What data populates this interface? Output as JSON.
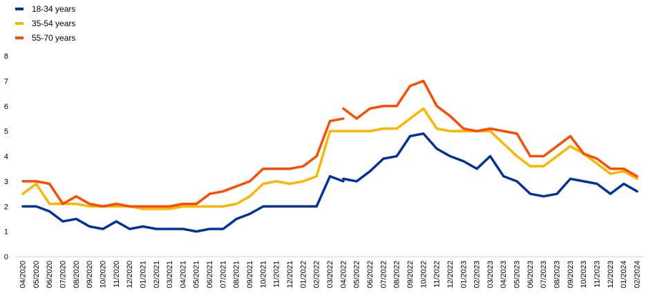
{
  "chart_data": {
    "type": "line",
    "title": "",
    "xlabel": "",
    "ylabel": "",
    "ylim": [
      0,
      8
    ],
    "yticks": [
      0,
      1,
      2,
      3,
      4,
      5,
      6,
      7,
      8
    ],
    "grid": false,
    "legend_position": "top-left",
    "categories": [
      "04/2020",
      "05/2020",
      "06/2020",
      "07/2020",
      "08/2020",
      "09/2020",
      "10/2020",
      "11/2020",
      "12/2020",
      "01/2021",
      "02/2021",
      "03/2021",
      "04/2021",
      "05/2021",
      "06/2021",
      "07/2021",
      "08/2021",
      "09/2021",
      "10/2021",
      "11/2021",
      "12/2021",
      "01/2022",
      "02/2022",
      "03/2022",
      "04/2022",
      "05/2022",
      "06/2022",
      "07/2022",
      "08/2022",
      "09/2022",
      "10/2022",
      "11/2022",
      "12/2022",
      "01/2023",
      "02/2023",
      "03/2023",
      "04/2023",
      "05/2023",
      "06/2023",
      "07/2023",
      "08/2023",
      "09/2023",
      "10/2023",
      "11/2023",
      "12/2023",
      "01/2024",
      "02/2024"
    ],
    "series": [
      {
        "name": "18-34 years",
        "color": "#003299",
        "segments": [
          {
            "start": 0,
            "values": [
              2.0,
              2.0,
              1.8,
              1.4,
              1.5,
              1.2,
              1.1,
              1.4,
              1.1,
              1.2,
              1.1,
              1.1,
              1.1,
              1.0,
              1.1,
              1.1,
              1.5,
              1.7,
              2.0,
              2.0,
              2.0,
              2.0,
              2.0,
              3.2,
              3.0
            ]
          },
          {
            "start": 24,
            "values": [
              3.1,
              3.0,
              3.4,
              3.9,
              4.0,
              4.8,
              4.9,
              4.3,
              4.0,
              3.8,
              3.5,
              4.0,
              3.2,
              3.0,
              2.5,
              2.4,
              2.5,
              3.1,
              3.0,
              2.9,
              2.5,
              2.9,
              2.6
            ]
          }
        ]
      },
      {
        "name": "35-54 years",
        "color": "#FFB400",
        "segments": [
          {
            "start": 0,
            "values": [
              2.5,
              2.9,
              2.1,
              2.1,
              2.1,
              2.0,
              2.0,
              2.0,
              2.0,
              1.9,
              1.9,
              1.9,
              2.0,
              2.0,
              2.0,
              2.0,
              2.1,
              2.4,
              2.9,
              3.0,
              2.9,
              3.0,
              3.2,
              5.0,
              5.0,
              5.0,
              5.0,
              5.1,
              5.1,
              5.5,
              5.9,
              5.1,
              5.0,
              5.0,
              5.0,
              5.0,
              4.5,
              4.0,
              3.6,
              3.6,
              4.0,
              4.4,
              4.1,
              3.7,
              3.3,
              3.4,
              3.1
            ]
          }
        ]
      },
      {
        "name": "55-70 years",
        "color": "#FF4B00",
        "segments": [
          {
            "start": 0,
            "values": [
              3.0,
              3.0,
              2.9,
              2.1,
              2.4,
              2.1,
              2.0,
              2.1,
              2.0,
              2.0,
              2.0,
              2.0,
              2.1,
              2.1,
              2.5,
              2.6,
              2.8,
              3.0,
              3.5,
              3.5,
              3.5,
              3.6,
              4.0,
              5.4,
              5.5
            ]
          },
          {
            "start": 24,
            "values": [
              5.9,
              5.5,
              5.9,
              6.0,
              6.0,
              6.8,
              7.0,
              6.0,
              5.6,
              5.1,
              5.0,
              5.1,
              5.0,
              4.9,
              4.0,
              4.0,
              4.4,
              4.8,
              4.1,
              3.9,
              3.5,
              3.5,
              3.2
            ]
          }
        ]
      }
    ]
  }
}
